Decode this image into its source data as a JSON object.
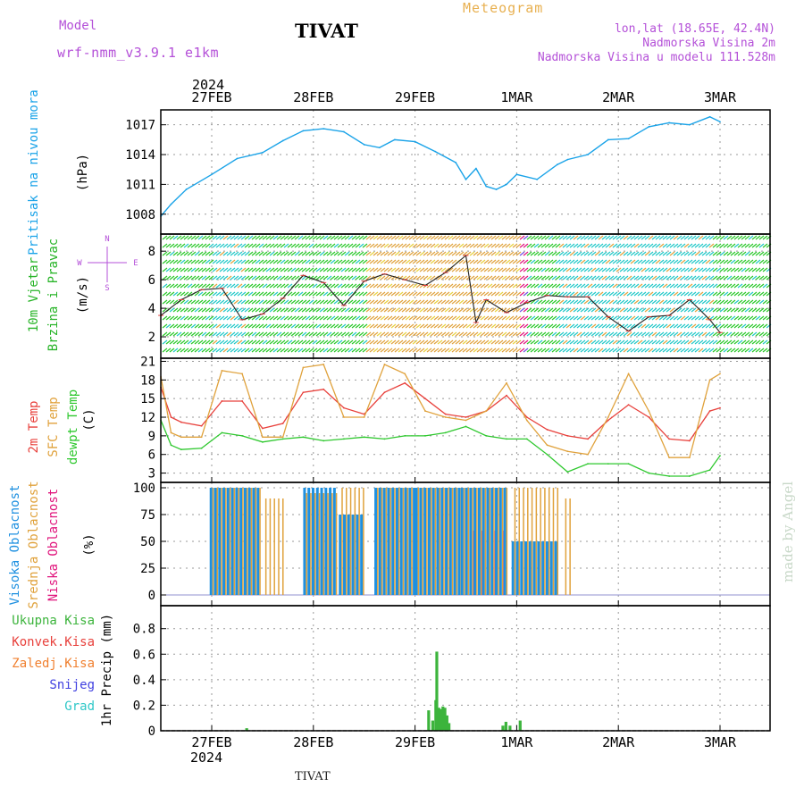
{
  "header": {
    "model_label": "Model",
    "model_name": "wrf-nmm_v3.9.1 e1km",
    "station": "TIVAT",
    "title": "Meteogram",
    "location": "lon,lat (18.65E, 42.4N)",
    "elevation": "Nadmorska Visina 2m",
    "model_elevation": "Nadmorska Visina u modelu 111.528m",
    "footer_station": "TIVAT",
    "watermark": "made by Angel",
    "year_top": "2024",
    "year_bottom": "2024"
  },
  "colors": {
    "pressure": "#1aa3e8",
    "temp2m": "#e8413c",
    "sfc_temp": "#e0a23c",
    "dewpt": "#2ec82e",
    "cloud_high": "#1e90e0",
    "cloud_mid": "#e0a23c",
    "cloud_low": "#e0147c",
    "precip_total": "#3cb43c",
    "precip_conv": "#e8413c",
    "precip_freez": "#f08030",
    "precip_snow": "#4040e0",
    "precip_grad": "#30c8c8",
    "wind_label": "#28b428",
    "purple": "#b450d8"
  },
  "chart_data": [
    {
      "type": "line",
      "panel": "pressure",
      "ylabel": "Pritisak na nivou mora",
      "unit": "(hPa)",
      "ylim": [
        1006,
        1018.5
      ],
      "yticks": [
        1008,
        1011,
        1014,
        1017
      ],
      "x_days": [
        0,
        0.1,
        0.25,
        0.5,
        0.75,
        1.0,
        1.2,
        1.4,
        1.6,
        1.8,
        2.0,
        2.15,
        2.3,
        2.5,
        2.7,
        2.9,
        3.0,
        3.1,
        3.2,
        3.3,
        3.4,
        3.5,
        3.7,
        3.9,
        4.0,
        4.2,
        4.4,
        4.6,
        4.8,
        5.0,
        5.2,
        5.4,
        5.5
      ],
      "series": [
        {
          "values": [
            1007.8,
            1009.0,
            1010.5,
            1012.0,
            1013.6,
            1014.2,
            1015.4,
            1016.4,
            1016.6,
            1016.3,
            1015.0,
            1014.7,
            1015.5,
            1015.3,
            1014.3,
            1013.2,
            1011.5,
            1012.6,
            1010.8,
            1010.5,
            1011.0,
            1012.0,
            1011.5,
            1013.0,
            1013.5,
            1014.0,
            1015.5,
            1015.6,
            1016.8,
            1017.2,
            1017.0,
            1017.8,
            1017.3
          ]
        }
      ]
    },
    {
      "type": "line",
      "panel": "wind",
      "ylabel": "10m Vjetar",
      "ylabel2": "Brzina i Pravac",
      "unit": "(m/s)",
      "ylim": [
        0.5,
        9.2
      ],
      "yticks": [
        2,
        4,
        6,
        8
      ],
      "compass": [
        "N",
        "W",
        "E",
        "S"
      ],
      "x_days": [
        0,
        0.2,
        0.4,
        0.6,
        0.8,
        1.0,
        1.2,
        1.4,
        1.6,
        1.8,
        2.0,
        2.2,
        2.4,
        2.6,
        2.8,
        3.0,
        3.1,
        3.2,
        3.4,
        3.6,
        3.8,
        4.0,
        4.2,
        4.4,
        4.6,
        4.8,
        5.0,
        5.2,
        5.4,
        5.5
      ],
      "series": [
        {
          "values": [
            3.5,
            4.6,
            5.3,
            5.4,
            3.2,
            3.6,
            4.7,
            6.3,
            5.8,
            4.2,
            5.9,
            6.4,
            6.0,
            5.6,
            6.5,
            7.7,
            3.0,
            4.6,
            3.7,
            4.4,
            4.9,
            4.8,
            4.8,
            3.4,
            2.4,
            3.4,
            3.5,
            4.6,
            3.2,
            2.3
          ]
        }
      ]
    },
    {
      "type": "line",
      "panel": "temperature",
      "ylabel": "2m Temp",
      "ylabel2": "SFC Temp",
      "ylabel3": "dewpt Temp",
      "unit": "(C)",
      "ylim": [
        1.5,
        21.5
      ],
      "yticks": [
        3,
        6,
        9,
        12,
        15,
        18,
        21
      ],
      "x_days": [
        0,
        0.1,
        0.2,
        0.4,
        0.6,
        0.8,
        1.0,
        1.2,
        1.4,
        1.6,
        1.8,
        2.0,
        2.2,
        2.4,
        2.6,
        2.8,
        3.0,
        3.2,
        3.4,
        3.6,
        3.8,
        4.0,
        4.2,
        4.4,
        4.6,
        4.8,
        5.0,
        5.2,
        5.4,
        5.5
      ],
      "series": [
        {
          "name": "2m Temp",
          "values": [
            16.8,
            12.0,
            11.2,
            10.6,
            14.6,
            14.6,
            10.2,
            11.0,
            16.0,
            16.5,
            13.5,
            12.5,
            16.0,
            17.5,
            15.0,
            12.5,
            12.0,
            13.0,
            15.5,
            12.0,
            10.0,
            9.0,
            8.5,
            11.5,
            14.0,
            12.0,
            8.5,
            8.2,
            13.0,
            13.5
          ]
        },
        {
          "name": "SFC Temp",
          "values": [
            18.5,
            9.5,
            8.8,
            8.8,
            19.5,
            19.0,
            8.8,
            8.8,
            20.0,
            20.5,
            12.0,
            12.0,
            20.5,
            19.0,
            13.0,
            12.0,
            11.5,
            13.0,
            17.5,
            11.5,
            7.5,
            6.5,
            6.0,
            12.0,
            19.0,
            13.0,
            5.5,
            5.5,
            18.0,
            19.0
          ]
        },
        {
          "name": "dewpt Temp",
          "values": [
            11.5,
            7.5,
            6.8,
            7.0,
            9.5,
            9.0,
            8.0,
            8.5,
            8.8,
            8.2,
            8.5,
            8.8,
            8.5,
            9.0,
            9.0,
            9.5,
            10.5,
            9.0,
            8.5,
            8.5,
            6.0,
            3.2,
            4.5,
            4.5,
            4.5,
            3.0,
            2.5,
            2.5,
            3.5,
            5.8
          ]
        }
      ]
    },
    {
      "type": "bar",
      "panel": "clouds",
      "ylabel": "Visoka Oblacnost",
      "ylabel2": "Srednja Oblacnost",
      "ylabel3": "Niska Oblacnost",
      "unit": "(%)",
      "ylim": [
        -10,
        105
      ],
      "yticks": [
        0,
        25,
        50,
        75,
        100
      ],
      "segments": [
        {
          "from": 0.48,
          "to": 0.95,
          "high": 100,
          "mid": 100,
          "low": 0
        },
        {
          "from": 1.0,
          "to": 1.18,
          "high": 0,
          "mid": 90,
          "low": 0
        },
        {
          "from": 1.4,
          "to": 1.7,
          "high": 100,
          "mid": 95,
          "low": 0
        },
        {
          "from": 1.75,
          "to": 1.98,
          "high": 75,
          "mid": 100,
          "low": 0
        },
        {
          "from": 2.1,
          "to": 2.5,
          "high": 100,
          "mid": 100,
          "low": 0
        },
        {
          "from": 2.5,
          "to": 2.95,
          "high": 100,
          "mid": 100,
          "low": 0
        },
        {
          "from": 2.95,
          "to": 3.4,
          "high": 100,
          "mid": 100,
          "low": 60
        },
        {
          "from": 3.45,
          "to": 3.9,
          "high": 50,
          "mid": 100,
          "low": 0
        },
        {
          "from": 3.95,
          "to": 4.0,
          "high": 0,
          "mid": 90,
          "low": 0
        }
      ]
    },
    {
      "type": "bar",
      "panel": "precip",
      "ylabel": "1hr Precip (mm)",
      "ylim": [
        0,
        0.98
      ],
      "yticks": [
        0,
        0.2,
        0.4,
        0.6,
        0.8
      ],
      "legend": [
        "Ukupna Kisa",
        "Konvek.Kisa",
        "Zaledj.Kisa",
        "Snijeg",
        "Grad"
      ],
      "x_days": [
        0.83,
        2.62,
        2.66,
        2.69,
        2.7,
        2.72,
        2.74,
        2.76,
        2.78,
        2.8,
        2.82,
        3.35,
        3.38,
        3.42,
        3.52
      ],
      "values": [
        0.02,
        0.16,
        0.08,
        0.24,
        0.62,
        0.18,
        0.17,
        0.19,
        0.18,
        0.12,
        0.06,
        0.04,
        0.07,
        0.04,
        0.08
      ]
    }
  ],
  "days": [
    "27FEB",
    "28FEB",
    "29FEB",
    "1MAR",
    "2MAR",
    "3MAR"
  ]
}
